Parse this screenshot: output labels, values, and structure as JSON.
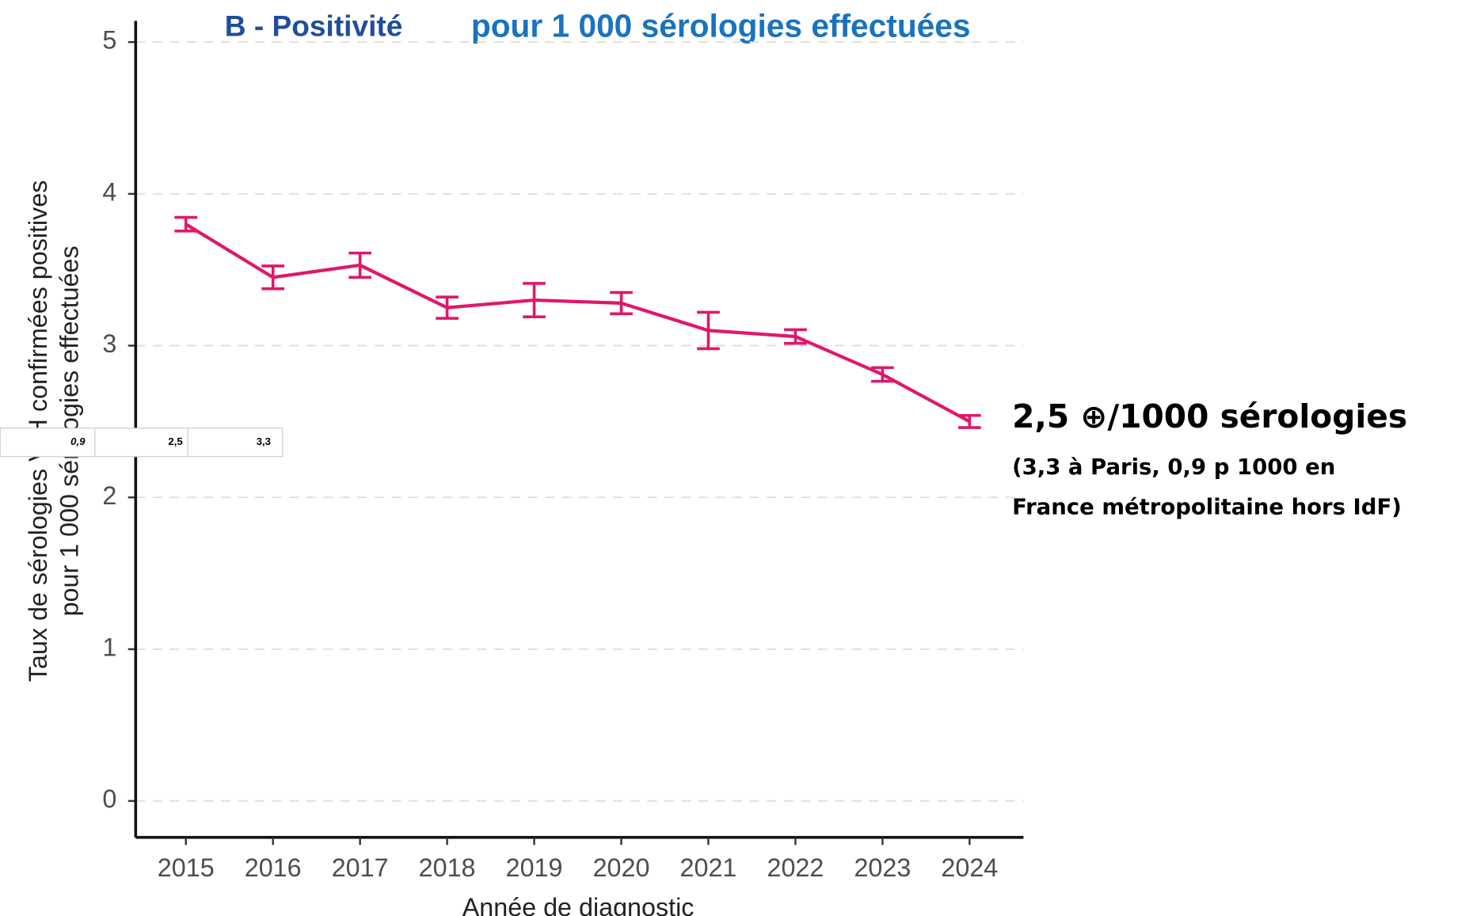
{
  "chart_data": {
    "type": "line",
    "title": "B - Positivité",
    "subtitle": "pour 1 000 sérologies effectuées",
    "x_label": "Année de diagnostic",
    "y_label": [
      "Taux de sérologies VIH confirmées positives",
      "pour 1 000 sérologies effectuées"
    ],
    "categories": [
      "2015",
      "2016",
      "2017",
      "2018",
      "2019",
      "2020",
      "2021",
      "2022",
      "2023",
      "2024"
    ],
    "series": [
      {
        "name": "Positivité",
        "color": "#e0176a",
        "values": [
          3.8,
          3.45,
          3.53,
          3.25,
          3.3,
          3.28,
          3.1,
          3.06,
          2.81,
          2.5
        ],
        "errors": [
          0.045,
          0.075,
          0.08,
          0.07,
          0.11,
          0.07,
          0.12,
          0.045,
          0.045,
          0.04
        ]
      }
    ],
    "ylim": [
      -0.24,
      5.14
    ],
    "yticks": [
      0,
      1,
      2,
      3,
      4,
      5
    ],
    "grid": true,
    "annotations": [
      "2,5 ⊕/1000 sérologies",
      "(3,3 à Paris, 0,9 p 1000 en",
      "France métropolitaine hors IdF)"
    ],
    "inset_labels": [
      "0,9",
      "2,5",
      "3,3"
    ]
  }
}
